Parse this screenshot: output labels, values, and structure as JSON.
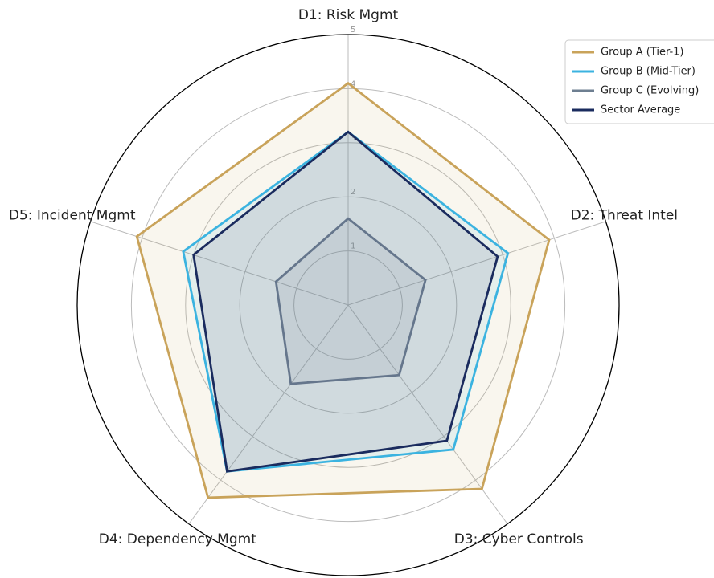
{
  "chart_data": {
    "type": "radar",
    "categories": [
      "D1: Risk Mgmt",
      "D2: Threat Intel",
      "D3: Cyber Controls",
      "D4: Dependency Mgmt",
      "D5: Incident Mgmt"
    ],
    "rlim": [
      0,
      5
    ],
    "rticks": [
      1,
      2,
      3,
      4,
      5
    ],
    "grid": true,
    "fill": true,
    "legend": "upper right",
    "series": [
      {
        "name": "Group A (Tier-1)",
        "color": "#c9a35a",
        "values": [
          4.1,
          3.9,
          4.2,
          4.4,
          4.1
        ]
      },
      {
        "name": "Group B (Mid-Tier)",
        "color": "#3bb3e0",
        "values": [
          3.2,
          3.1,
          3.3,
          3.8,
          3.2
        ]
      },
      {
        "name": "Group C (Evolving)",
        "color": "#6e7f91",
        "values": [
          1.6,
          1.5,
          1.6,
          1.8,
          1.4
        ]
      },
      {
        "name": "Sector Average",
        "color": "#1a2b5e",
        "values": [
          3.2,
          2.9,
          3.1,
          3.8,
          3.0
        ]
      }
    ]
  }
}
